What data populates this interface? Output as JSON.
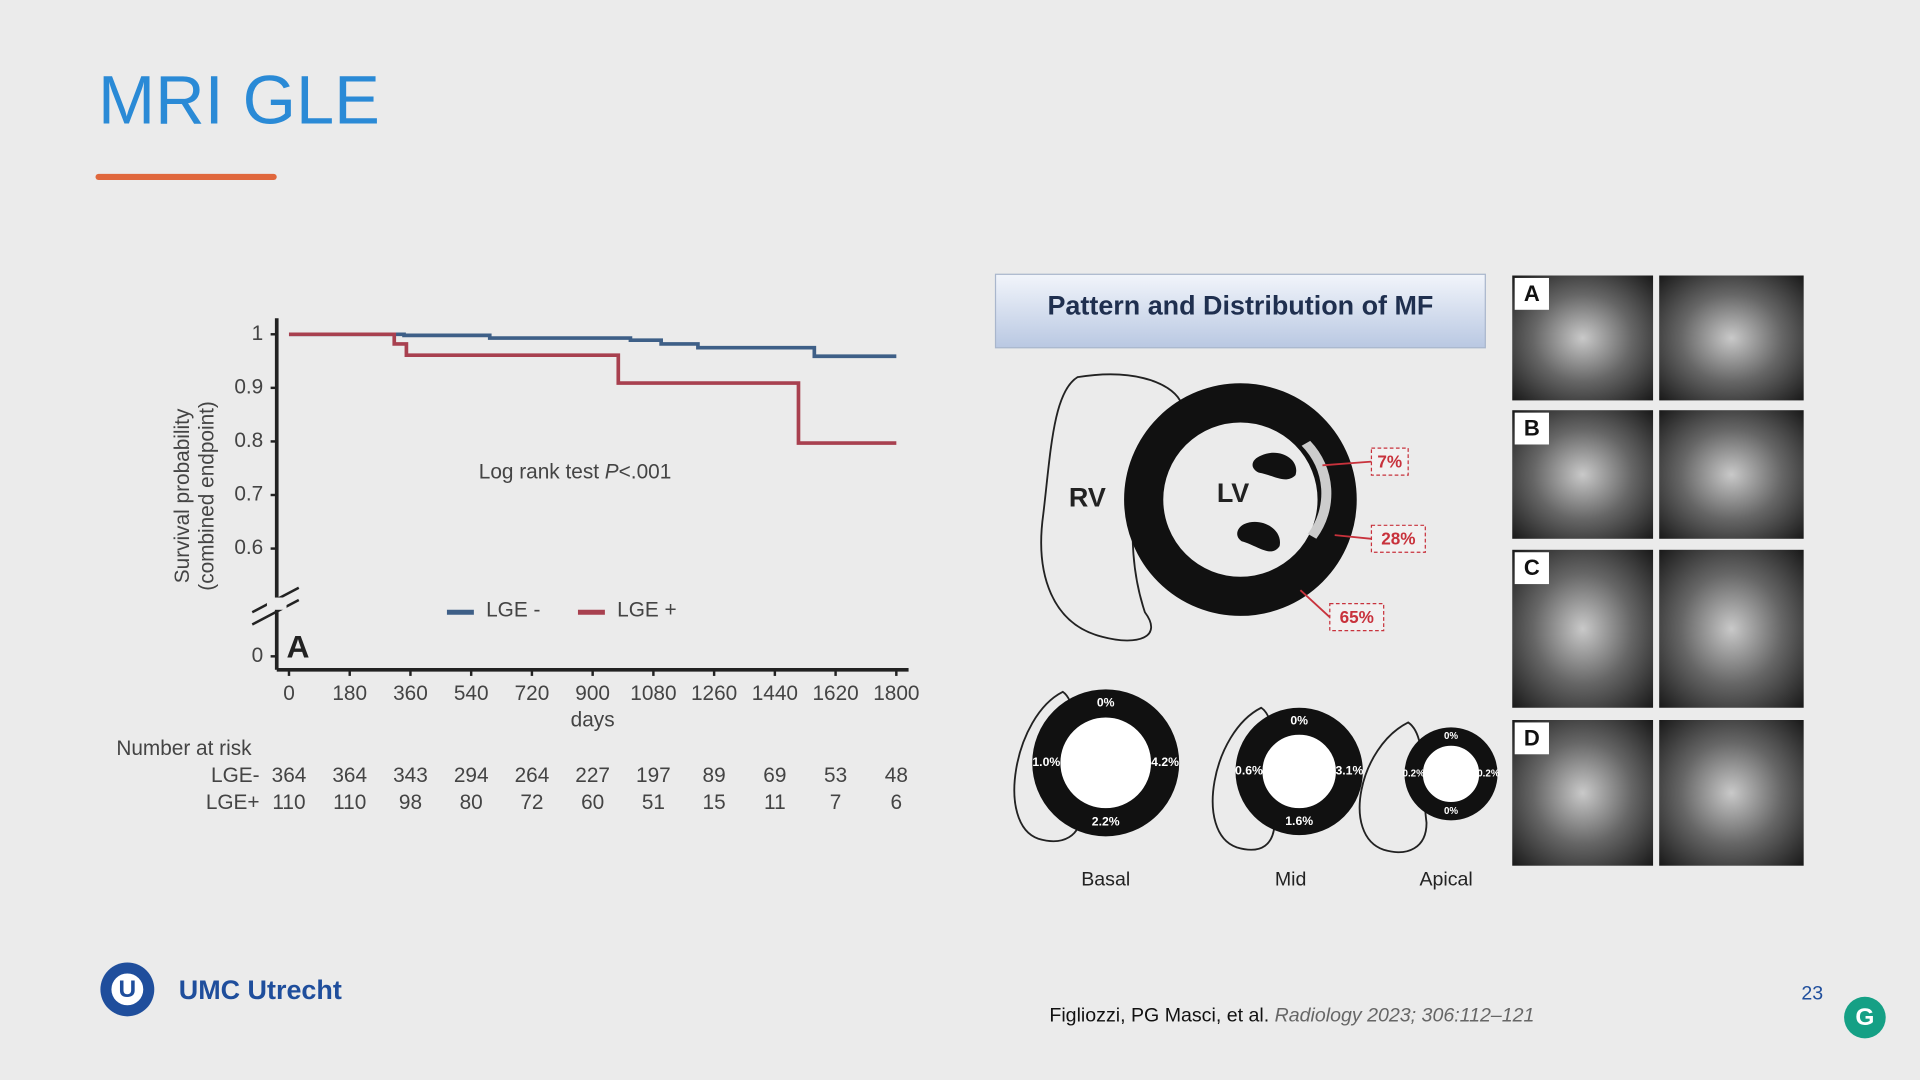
{
  "slide": {
    "title": "MRI GLE",
    "page_number": "23"
  },
  "logo": {
    "text": "UMC Utrecht"
  },
  "citation": {
    "authors": "Figliozzi, PG Masci, et al.",
    "source": "Radiology 2023; 306:112–121"
  },
  "survival_chart": {
    "type": "line",
    "panel_label": "A",
    "y_label": [
      "Survival probability",
      "(combined endpoint)"
    ],
    "x_label": "days",
    "annotation": {
      "text": "Log rank test ",
      "p": "P",
      "value": "<.001"
    },
    "xlim": [
      0,
      1800
    ],
    "xticks": [
      0,
      180,
      360,
      540,
      720,
      900,
      1080,
      1260,
      1440,
      1620,
      1800
    ],
    "ylim": [
      0.5,
      1.03
    ],
    "yticks": [
      0.6,
      0.7,
      0.8,
      0.9,
      1
    ],
    "break_tick": 0,
    "series": [
      {
        "name": "LGE -",
        "color": "#3e5f87",
        "x": [
          0,
          341,
          595,
          1012,
          1103,
          1212,
          1557,
          1800
        ],
        "values": [
          1,
          0.998,
          0.993,
          0.989,
          0.982,
          0.975,
          0.959,
          0.959
        ]
      },
      {
        "name": "LGE +",
        "color": "#a8404f",
        "x": [
          0,
          312,
          348,
          976,
          1510,
          1800
        ],
        "values": [
          1,
          0.982,
          0.961,
          0.909,
          0.797,
          0.797
        ]
      }
    ]
  },
  "risk_table": {
    "title": "Number at risk",
    "rows": [
      {
        "label": "LGE-",
        "values": [
          364,
          364,
          343,
          294,
          264,
          227,
          197,
          89,
          69,
          53,
          48
        ]
      },
      {
        "label": "LGE+",
        "values": [
          110,
          110,
          98,
          80,
          72,
          60,
          51,
          15,
          11,
          7,
          6
        ]
      }
    ]
  },
  "mf_diagram": {
    "title": "Pattern and Distribution of MF",
    "rv": "RV",
    "lv": "LV",
    "callouts": [
      "7%",
      "28%",
      "65%"
    ],
    "sections": [
      {
        "name": "Basal",
        "values": [
          "0%",
          "4.2%",
          "2.2%",
          "1.0%"
        ]
      },
      {
        "name": "Mid",
        "values": [
          "0%",
          "3.1%",
          "1.6%",
          "0.6%"
        ]
      },
      {
        "name": "Apical",
        "values": [
          "0%",
          "0.2%",
          "0%",
          "0.2%"
        ]
      }
    ]
  },
  "image_panels": {
    "labels": [
      "A",
      "B",
      "C",
      "D"
    ]
  }
}
